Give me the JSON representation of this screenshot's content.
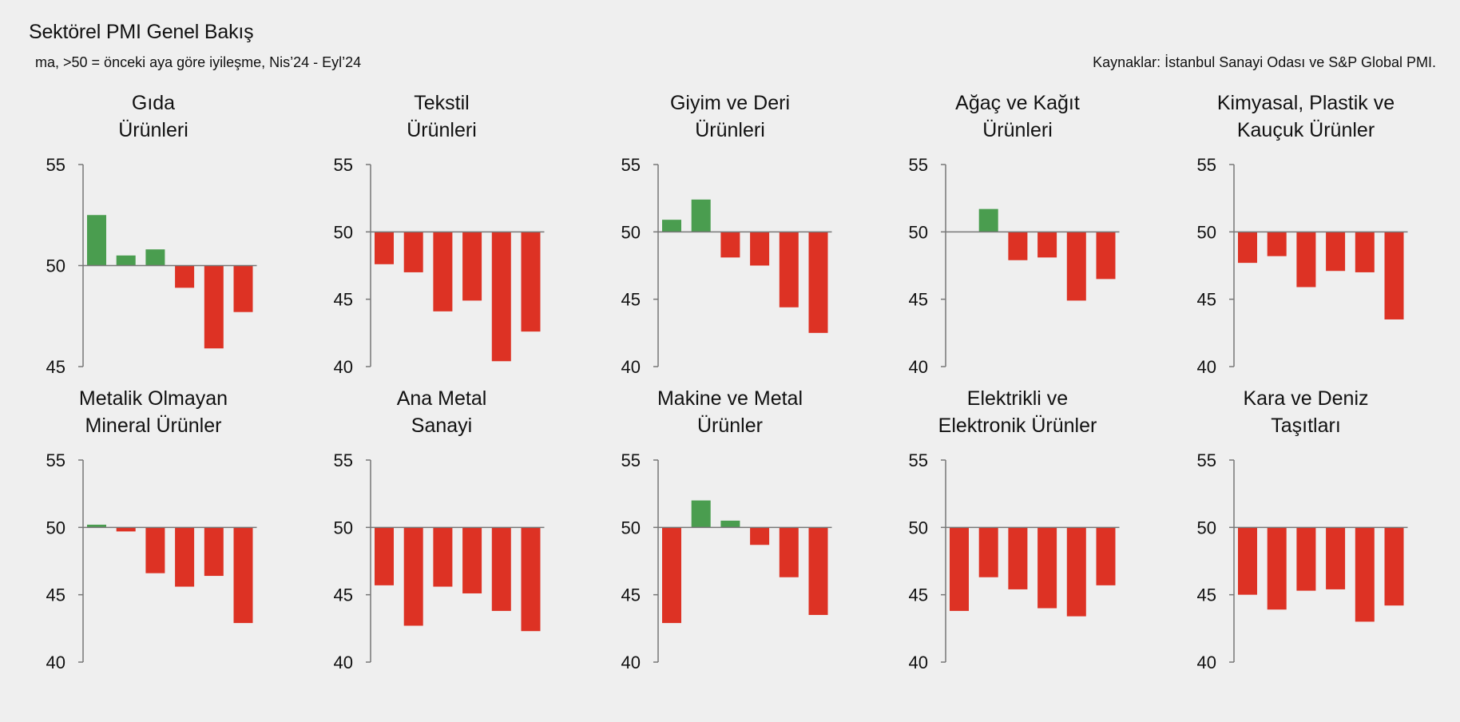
{
  "header": {
    "title": "Sektörel PMI Genel Bakış",
    "subtitle": "ma, >50 = önceki aya göre iyileşme, Nis’24 - Eyl’24",
    "source": "Kaynaklar: İstanbul Sanayi Odası ve S&P Global PMI."
  },
  "colors": {
    "up": "#4a9d4f",
    "down": "#dd3224",
    "axis": "#777777",
    "background": "#efefef"
  },
  "chart_data": [
    {
      "type": "bar",
      "title": "Gıda\nÜrünleri",
      "baseline": 50,
      "ylim": [
        45,
        55
      ],
      "yticks": [
        45,
        50,
        55
      ],
      "values": [
        52.5,
        50.5,
        50.8,
        48.9,
        45.9,
        47.7
      ]
    },
    {
      "type": "bar",
      "title": "Tekstil\nÜrünleri",
      "baseline": 50,
      "ylim": [
        40,
        55
      ],
      "yticks": [
        40,
        45,
        50,
        55
      ],
      "values": [
        47.6,
        47.0,
        44.1,
        44.9,
        40.4,
        42.6
      ]
    },
    {
      "type": "bar",
      "title": "Giyim ve Deri\nÜrünleri",
      "baseline": 50,
      "ylim": [
        40,
        55
      ],
      "yticks": [
        40,
        45,
        50,
        55
      ],
      "values": [
        50.9,
        52.4,
        48.1,
        47.5,
        44.4,
        42.5
      ]
    },
    {
      "type": "bar",
      "title": "Ağaç ve Kağıt\nÜrünleri",
      "baseline": 50,
      "ylim": [
        40,
        55
      ],
      "yticks": [
        40,
        45,
        50,
        55
      ],
      "values": [
        50.0,
        51.7,
        47.9,
        48.1,
        44.9,
        46.5
      ]
    },
    {
      "type": "bar",
      "title": "Kimyasal, Plastik ve\nKauçuk Ürünler",
      "baseline": 50,
      "ylim": [
        40,
        55
      ],
      "yticks": [
        40,
        45,
        50,
        55
      ],
      "values": [
        47.7,
        48.2,
        45.9,
        47.1,
        47.0,
        43.5
      ]
    },
    {
      "type": "bar",
      "title": "Metalik Olmayan\nMineral Ürünler",
      "baseline": 50,
      "ylim": [
        40,
        55
      ],
      "yticks": [
        40,
        45,
        50,
        55
      ],
      "values": [
        50.2,
        49.7,
        46.6,
        45.6,
        46.4,
        42.9
      ]
    },
    {
      "type": "bar",
      "title": "Ana Metal\nSanayi",
      "baseline": 50,
      "ylim": [
        40,
        55
      ],
      "yticks": [
        40,
        45,
        50,
        55
      ],
      "values": [
        45.7,
        42.7,
        45.6,
        45.1,
        43.8,
        42.3
      ]
    },
    {
      "type": "bar",
      "title": "Makine ve Metal\nÜrünler",
      "baseline": 50,
      "ylim": [
        40,
        55
      ],
      "yticks": [
        40,
        45,
        50,
        55
      ],
      "values": [
        42.9,
        52.0,
        50.5,
        48.7,
        46.3,
        43.5
      ]
    },
    {
      "type": "bar",
      "title": "Elektrikli ve\nElektronik Ürünler",
      "baseline": 50,
      "ylim": [
        40,
        55
      ],
      "yticks": [
        40,
        45,
        50,
        55
      ],
      "values": [
        43.8,
        46.3,
        45.4,
        44.0,
        43.4,
        45.7
      ]
    },
    {
      "type": "bar",
      "title": "Kara ve Deniz\nTaşıtları",
      "baseline": 50,
      "ylim": [
        40,
        55
      ],
      "yticks": [
        40,
        45,
        50,
        55
      ],
      "values": [
        45.0,
        43.9,
        45.3,
        45.4,
        43.0,
        44.2
      ]
    }
  ]
}
